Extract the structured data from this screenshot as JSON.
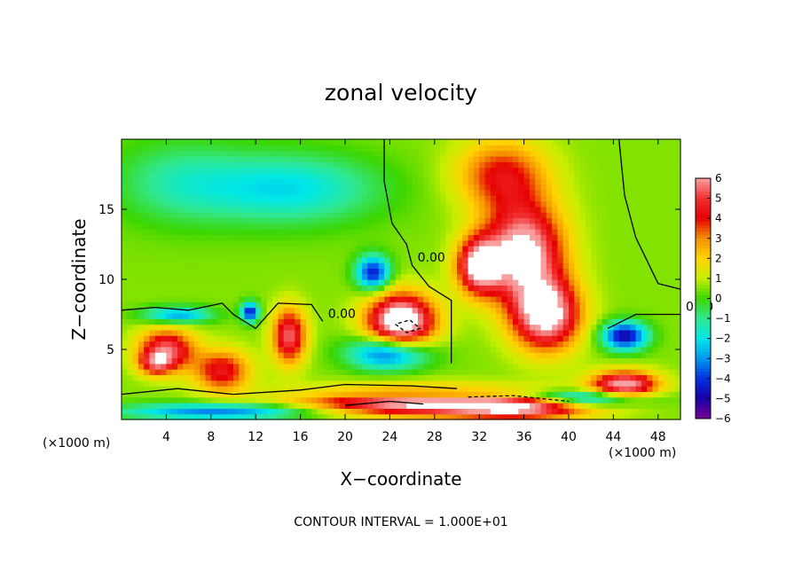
{
  "chart_data": {
    "type": "heatmap",
    "title": "zonal velocity",
    "xlabel": "X−coordinate",
    "ylabel": "Z−coordinate",
    "x_unit_left": "(×1000 m)",
    "x_unit_right": "(×1000 m)",
    "xlim": [
      0,
      50
    ],
    "ylim": [
      0,
      20
    ],
    "x_ticks": [
      4,
      8,
      12,
      16,
      20,
      24,
      28,
      32,
      36,
      40,
      44,
      48
    ],
    "y_ticks": [
      5,
      10,
      15
    ],
    "colorbar": {
      "ticks": [
        6,
        5,
        4,
        3,
        2,
        1,
        0,
        -1,
        -2,
        -3,
        -4,
        -5,
        -6
      ],
      "labels": [
        "6",
        "5",
        "4",
        "3",
        "2",
        "1",
        "0",
        "−1",
        "−2",
        "−3",
        "−4",
        "−5",
        "−6"
      ],
      "colors": [
        "#f8a0a0",
        "#f23030",
        "#e60000",
        "#f59000",
        "#ffd400",
        "#c8ee00",
        "#3cd600",
        "#30e890",
        "#00e8e8",
        "#0098f0",
        "#0030e0",
        "#1800a8",
        "#780098"
      ]
    },
    "background_value": 0.5,
    "features": [
      {
        "cx": 15,
        "cy": 16.5,
        "sx": 8,
        "sy": 2.5,
        "amp": -2.6
      },
      {
        "cx": 5,
        "cy": 17,
        "sx": 6,
        "sy": 3,
        "amp": -1.5
      },
      {
        "cx": 34,
        "cy": 17.5,
        "sx": 4,
        "sy": 2.5,
        "amp": 3.5
      },
      {
        "cx": 36,
        "cy": 12,
        "sx": 3.5,
        "sy": 3.5,
        "amp": 6.5
      },
      {
        "cx": 38,
        "cy": 7.5,
        "sx": 3,
        "sy": 2.5,
        "amp": 6.5
      },
      {
        "cx": 32,
        "cy": 11,
        "sx": 2,
        "sy": 2,
        "amp": 6
      },
      {
        "cx": 25,
        "cy": 7,
        "sx": 3,
        "sy": 2,
        "amp": 7.5
      },
      {
        "cx": 22.5,
        "cy": 10.5,
        "sx": 1.5,
        "sy": 1.2,
        "amp": -5
      },
      {
        "cx": 24,
        "cy": 4.8,
        "sx": 3.5,
        "sy": 1.2,
        "amp": -5
      },
      {
        "cx": 45,
        "cy": 6,
        "sx": 2,
        "sy": 1,
        "amp": -5.5
      },
      {
        "cx": 45,
        "cy": 2.5,
        "sx": 3,
        "sy": 1,
        "amp": 6
      },
      {
        "cx": 4,
        "cy": 5,
        "sx": 2.5,
        "sy": 1.5,
        "amp": 5
      },
      {
        "cx": 3,
        "cy": 4,
        "sx": 1.5,
        "sy": 0.8,
        "amp": 3
      },
      {
        "cx": 9,
        "cy": 3.5,
        "sx": 2.5,
        "sy": 1.5,
        "amp": 4
      },
      {
        "cx": 15,
        "cy": 6,
        "sx": 1.5,
        "sy": 2,
        "amp": 5
      },
      {
        "cx": 11.5,
        "cy": 7.7,
        "sx": 0.8,
        "sy": 0.7,
        "amp": -5
      },
      {
        "cx": 5,
        "cy": 7.5,
        "sx": 3,
        "sy": 0.6,
        "amp": -3.5
      },
      {
        "cx": 27,
        "cy": 1.3,
        "sx": 11,
        "sy": 1.0,
        "amp": 6.5
      },
      {
        "cx": 36,
        "cy": 0.8,
        "sx": 6,
        "sy": 0.8,
        "amp": 4
      },
      {
        "cx": 42,
        "cy": 1.5,
        "sx": 5,
        "sy": 0.6,
        "amp": -4
      },
      {
        "cx": 9,
        "cy": 0.6,
        "sx": 9,
        "sy": 0.6,
        "amp": -4
      },
      {
        "cx": 29,
        "cy": 1.8,
        "sx": 10,
        "sy": 0.4,
        "amp": -3
      }
    ],
    "contours": [
      {
        "label": "0.00",
        "style": "solid",
        "points": [
          [
            23.5,
            20
          ],
          [
            23.5,
            17
          ],
          [
            24.2,
            14
          ],
          [
            25.5,
            12.5
          ],
          [
            26,
            11
          ]
        ]
      },
      {
        "label": "0.00",
        "style": "solid",
        "points": [
          [
            0,
            7.8
          ],
          [
            3,
            8
          ],
          [
            6,
            7.8
          ],
          [
            9,
            8.3
          ],
          [
            10,
            7.5
          ],
          [
            12,
            6.5
          ],
          [
            14,
            8.3
          ],
          [
            17,
            8.2
          ],
          [
            18,
            7
          ]
        ]
      },
      {
        "label": "0.00",
        "style": "solid",
        "points": [
          [
            43.5,
            6.5
          ],
          [
            46,
            7.5
          ],
          [
            50,
            7.5
          ]
        ]
      },
      {
        "label": "",
        "style": "solid",
        "points": [
          [
            44.5,
            20
          ],
          [
            45,
            16
          ],
          [
            46,
            13
          ],
          [
            48,
            9.7
          ],
          [
            50,
            9.3
          ]
        ]
      },
      {
        "label": "",
        "style": "solid",
        "points": [
          [
            0,
            1.8
          ],
          [
            5,
            2.2
          ],
          [
            10,
            1.8
          ],
          [
            16,
            2.1
          ],
          [
            20,
            2.5
          ],
          [
            26,
            2.4
          ],
          [
            30,
            2.2
          ]
        ]
      },
      {
        "label": "",
        "style": "solid",
        "points": [
          [
            26,
            11
          ],
          [
            27.5,
            9.5
          ],
          [
            29.5,
            8.5
          ],
          [
            29.5,
            4
          ]
        ]
      },
      {
        "label": "",
        "style": "solid",
        "points": [
          [
            20,
            1
          ],
          [
            24,
            1.3
          ],
          [
            27,
            1.1
          ]
        ]
      },
      {
        "label": "",
        "style": "dashed",
        "points": [
          [
            31,
            1.6
          ],
          [
            35,
            1.7
          ],
          [
            40,
            1.3
          ]
        ]
      },
      {
        "label": "",
        "style": "dashed",
        "points": [
          [
            24.5,
            6.8
          ],
          [
            25.5,
            6.2
          ],
          [
            26.7,
            6.5
          ],
          [
            25.8,
            7.1
          ],
          [
            24.5,
            6.8
          ]
        ]
      }
    ]
  },
  "footer": {
    "text": "CONTOUR INTERVAL = 1.000E+01"
  }
}
